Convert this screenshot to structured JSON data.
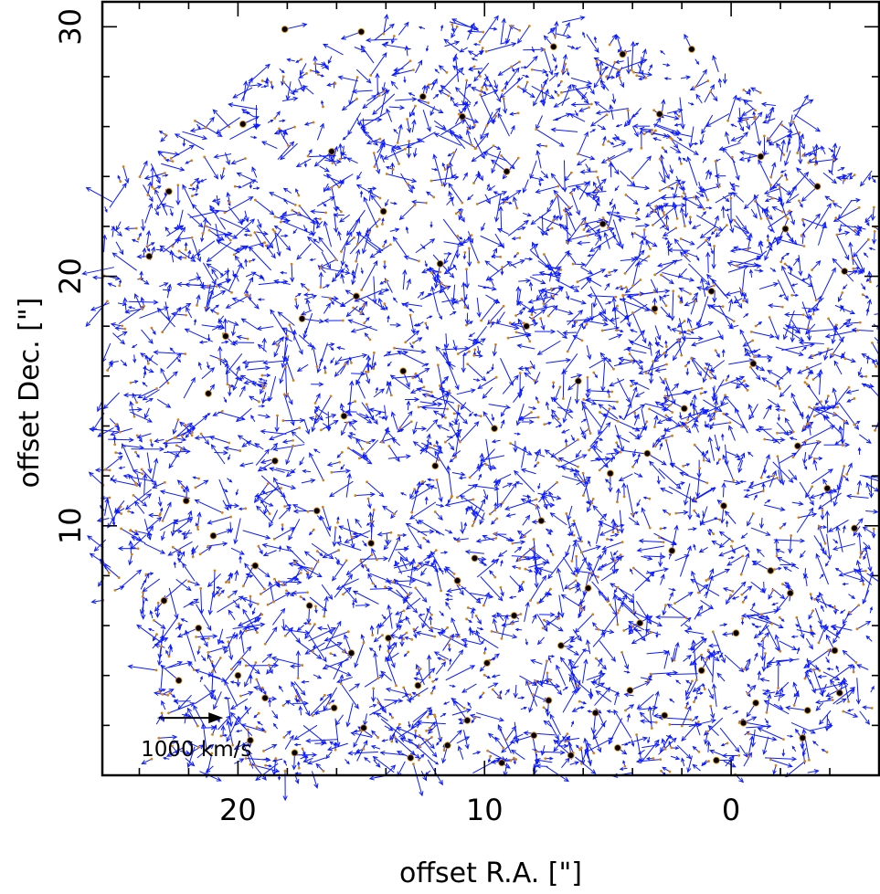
{
  "chart_data": {
    "type": "scatter",
    "description_kind": "vector field (star positions with proper-motion arrows)",
    "xlabel": "offset R.A. [\"]",
    "ylabel": "offset Dec. [\"]",
    "x_reversed": true,
    "xlim": [
      25.5,
      -6.0
    ],
    "ylim": [
      0.0,
      31.0
    ],
    "xticks": [
      20,
      10,
      0
    ],
    "yticks": [
      10,
      20,
      30
    ],
    "x_minor_step": 2,
    "y_minor_step": 2,
    "grid": false,
    "legend": "none",
    "scale_arrow": {
      "label": "1000 km/s",
      "x_start": 23.2,
      "x_end": 20.6,
      "y": 2.3
    },
    "colors": {
      "arrow": "#0a1aff",
      "star": "#000000",
      "star_edge": "#d4820c",
      "axis": "#000000"
    },
    "series": [
      {
        "x": [
          22.8,
          18.1,
          15.0,
          12.5,
          10.9,
          7.2,
          4.4,
          1.6,
          -1.2,
          -3.5,
          19.8,
          16.2,
          9.1,
          2.9,
          -2.2,
          14.1,
          5.2,
          23.6,
          11.8,
          0.8,
          -4.6,
          17.4,
          8.3,
          3.1,
          -0.9,
          20.5,
          13.3,
          6.2,
          21.2,
          15.7,
          9.6,
          1.9,
          -2.7,
          18.5,
          12.0,
          4.9,
          -3.9,
          22.1,
          16.8,
          7.7,
          0.3,
          -5.0,
          14.6,
          10.4,
          2.4,
          19.3,
          11.1,
          5.8,
          -1.6,
          23.0,
          17.1,
          8.8,
          3.7,
          -2.4,
          21.6,
          13.9,
          6.9,
          -0.2,
          15.4,
          9.9,
          1.2,
          -4.2,
          20.0,
          12.7,
          4.1,
          18.9,
          7.4,
          -1.0,
          16.1,
          5.5,
          -3.1,
          22.4,
          10.7,
          2.7,
          14.9,
          8.0,
          -0.5,
          19.5,
          11.5,
          4.6,
          -2.9,
          17.7,
          6.5,
          0.6,
          13.0,
          9.3,
          -4.4,
          21.0,
          15.2,
          3.4
        ],
        "y": [
          23.4,
          29.9,
          29.8,
          27.2,
          26.4,
          29.2,
          28.9,
          29.1,
          24.8,
          23.6,
          26.1,
          25.0,
          24.2,
          26.5,
          21.9,
          22.6,
          22.1,
          20.8,
          20.5,
          19.4,
          20.2,
          18.3,
          18.0,
          18.7,
          16.5,
          17.6,
          16.2,
          15.8,
          15.3,
          14.4,
          13.9,
          14.7,
          13.2,
          12.6,
          12.4,
          12.1,
          11.5,
          11.0,
          10.6,
          10.2,
          10.8,
          9.9,
          9.3,
          8.7,
          9.0,
          8.4,
          7.8,
          7.5,
          8.2,
          7.0,
          6.8,
          6.4,
          6.1,
          7.3,
          5.9,
          5.5,
          5.2,
          5.7,
          4.9,
          4.5,
          4.2,
          5.0,
          4.0,
          3.6,
          3.4,
          3.1,
          3.0,
          2.9,
          2.7,
          2.5,
          2.6,
          3.8,
          2.2,
          2.4,
          1.9,
          1.6,
          2.1,
          1.4,
          1.2,
          1.1,
          1.5,
          0.9,
          0.8,
          0.6,
          0.7,
          0.5,
          3.3,
          9.6,
          19.2,
          12.9
        ],
        "marker": "filled-circle"
      }
    ]
  }
}
